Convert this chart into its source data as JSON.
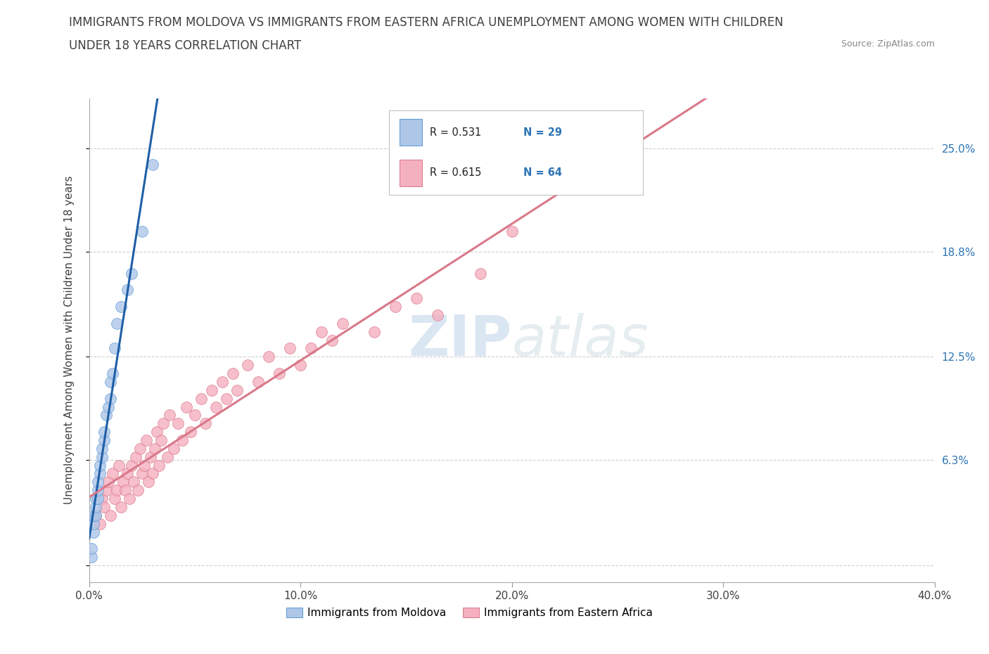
{
  "title_line1": "IMMIGRANTS FROM MOLDOVA VS IMMIGRANTS FROM EASTERN AFRICA UNEMPLOYMENT AMONG WOMEN WITH CHILDREN",
  "title_line2": "UNDER 18 YEARS CORRELATION CHART",
  "source": "Source: ZipAtlas.com",
  "ylabel": "Unemployment Among Women with Children Under 18 years",
  "xlim": [
    0.0,
    0.4
  ],
  "ylim": [
    -0.01,
    0.28
  ],
  "xticks": [
    0.0,
    0.1,
    0.2,
    0.3,
    0.4
  ],
  "xticklabels": [
    "0.0%",
    "10.0%",
    "20.0%",
    "30.0%",
    "40.0%"
  ],
  "ytick_positions": [
    0.0,
    0.063,
    0.125,
    0.188,
    0.25
  ],
  "right_ytick_labels": [
    "",
    "6.3%",
    "12.5%",
    "18.8%",
    "25.0%"
  ],
  "watermark_zip": "ZIP",
  "watermark_atlas": "atlas",
  "moldova_color": "#aec6e8",
  "moldova_edge": "#5b9bd5",
  "eastern_africa_color": "#f4b0be",
  "eastern_africa_edge": "#d9788a",
  "moldova_line_color": "#1f5fa6",
  "eastern_africa_line_color": "#d9788a",
  "R_moldova": 0.531,
  "N_moldova": 29,
  "R_eastern_africa": 0.615,
  "N_eastern_africa": 64,
  "legend_label_moldova": "Immigrants from Moldova",
  "legend_label_eastern_africa": "Immigrants from Eastern Africa",
  "moldova_x": [
    0.001,
    0.001,
    0.002,
    0.002,
    0.002,
    0.003,
    0.003,
    0.003,
    0.004,
    0.004,
    0.004,
    0.005,
    0.005,
    0.006,
    0.006,
    0.007,
    0.007,
    0.008,
    0.009,
    0.01,
    0.01,
    0.011,
    0.012,
    0.013,
    0.015,
    0.018,
    0.02,
    0.025,
    0.03
  ],
  "moldova_y": [
    0.005,
    0.01,
    0.02,
    0.025,
    0.03,
    0.03,
    0.035,
    0.04,
    0.04,
    0.045,
    0.05,
    0.055,
    0.06,
    0.065,
    0.07,
    0.075,
    0.08,
    0.09,
    0.095,
    0.1,
    0.11,
    0.115,
    0.13,
    0.145,
    0.155,
    0.165,
    0.175,
    0.2,
    0.24
  ],
  "eastern_africa_x": [
    0.003,
    0.005,
    0.006,
    0.007,
    0.008,
    0.009,
    0.01,
    0.011,
    0.012,
    0.013,
    0.014,
    0.015,
    0.016,
    0.017,
    0.018,
    0.019,
    0.02,
    0.021,
    0.022,
    0.023,
    0.024,
    0.025,
    0.026,
    0.027,
    0.028,
    0.029,
    0.03,
    0.031,
    0.032,
    0.033,
    0.034,
    0.035,
    0.037,
    0.038,
    0.04,
    0.042,
    0.044,
    0.046,
    0.048,
    0.05,
    0.053,
    0.055,
    0.058,
    0.06,
    0.063,
    0.065,
    0.068,
    0.07,
    0.075,
    0.08,
    0.085,
    0.09,
    0.095,
    0.1,
    0.105,
    0.11,
    0.115,
    0.12,
    0.135,
    0.145,
    0.155,
    0.165,
    0.185,
    0.2
  ],
  "eastern_africa_y": [
    0.03,
    0.025,
    0.04,
    0.035,
    0.045,
    0.05,
    0.03,
    0.055,
    0.04,
    0.045,
    0.06,
    0.035,
    0.05,
    0.045,
    0.055,
    0.04,
    0.06,
    0.05,
    0.065,
    0.045,
    0.07,
    0.055,
    0.06,
    0.075,
    0.05,
    0.065,
    0.055,
    0.07,
    0.08,
    0.06,
    0.075,
    0.085,
    0.065,
    0.09,
    0.07,
    0.085,
    0.075,
    0.095,
    0.08,
    0.09,
    0.1,
    0.085,
    0.105,
    0.095,
    0.11,
    0.1,
    0.115,
    0.105,
    0.12,
    0.11,
    0.125,
    0.115,
    0.13,
    0.12,
    0.13,
    0.14,
    0.135,
    0.145,
    0.14,
    0.155,
    0.16,
    0.15,
    0.175,
    0.2
  ],
  "grid_color": "#d0d0d0",
  "background_color": "#ffffff",
  "title_color": "#404040",
  "axis_label_color": "#404040",
  "blue_text_color": "#2e75b6"
}
